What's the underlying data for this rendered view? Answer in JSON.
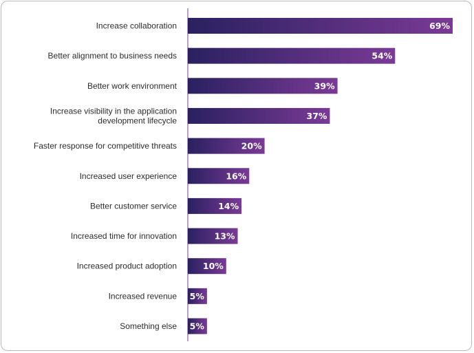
{
  "chart_data": {
    "type": "bar",
    "orientation": "horizontal",
    "categories": [
      [
        "Increase collaboration"
      ],
      [
        "Better alignment to business needs"
      ],
      [
        "Better work environment"
      ],
      [
        "Increase visibility in the application",
        "development lifecycle"
      ],
      [
        "Faster response for competitive threats"
      ],
      [
        "Increased user experience"
      ],
      [
        "Better customer service"
      ],
      [
        "Increased time for innovation"
      ],
      [
        "Increased product adoption"
      ],
      [
        "Increased revenue"
      ],
      [
        "Something else"
      ]
    ],
    "values": [
      69,
      54,
      39,
      37,
      20,
      16,
      14,
      13,
      10,
      5,
      5
    ],
    "value_labels": [
      "69%",
      "54%",
      "39%",
      "37%",
      "20%",
      "16%",
      "14%",
      "13%",
      "10%",
      "5%",
      "5%"
    ],
    "xlim": [
      0,
      69
    ],
    "grid": false,
    "colors": {
      "bar_start": "#2a2160",
      "bar_end": "#7a3a96",
      "axis": "#7a3a96",
      "label": "#2b2b2b",
      "value_text": "#ffffff"
    }
  }
}
